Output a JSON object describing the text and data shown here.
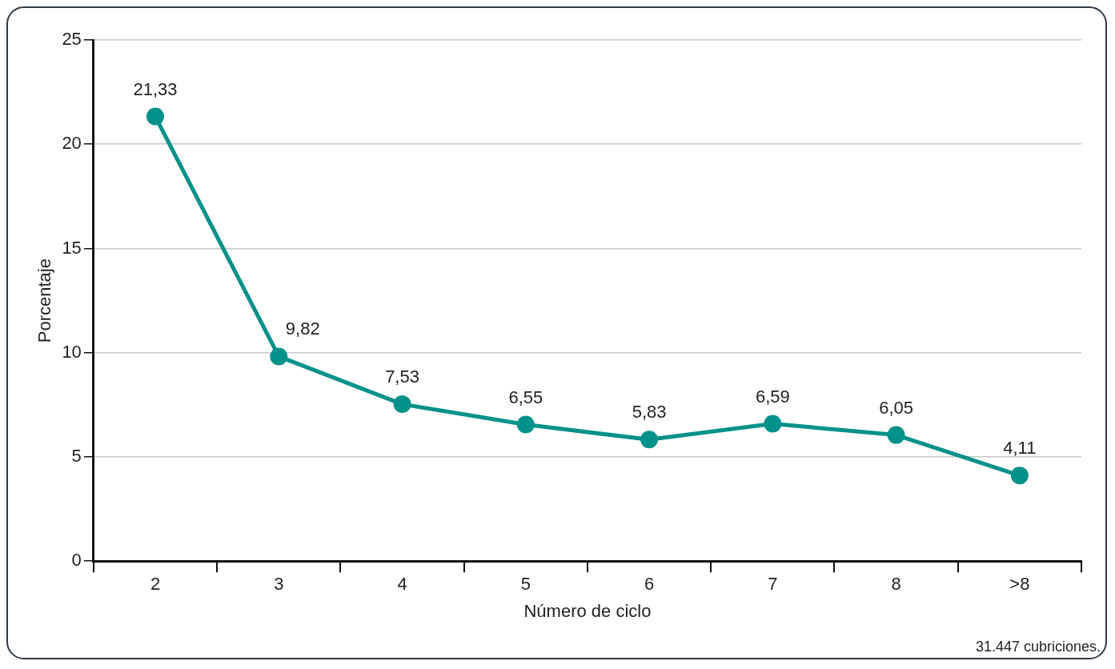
{
  "chart_data": {
    "type": "line",
    "xlabel": "Número de ciclo",
    "ylabel": "Porcentaje",
    "categories": [
      "2",
      "3",
      "4",
      "5",
      "6",
      "7",
      "8",
      ">8"
    ],
    "series": [
      {
        "color": "#00918a",
        "values": [
          21.33,
          9.82,
          7.53,
          6.55,
          5.83,
          6.59,
          6.05,
          4.11
        ],
        "value_labels": [
          "21,33",
          "9,82",
          "7,53",
          "6,55",
          "5,83",
          "6,59",
          "6,05",
          "4,11"
        ]
      }
    ],
    "ylim": [
      0,
      25
    ],
    "yticks": [
      0,
      5,
      10,
      15,
      20,
      25
    ],
    "grid": "y",
    "legend": false,
    "marker": "circle",
    "line_style": "solid",
    "annotations": [
      "31.447 cubriciones."
    ]
  }
}
